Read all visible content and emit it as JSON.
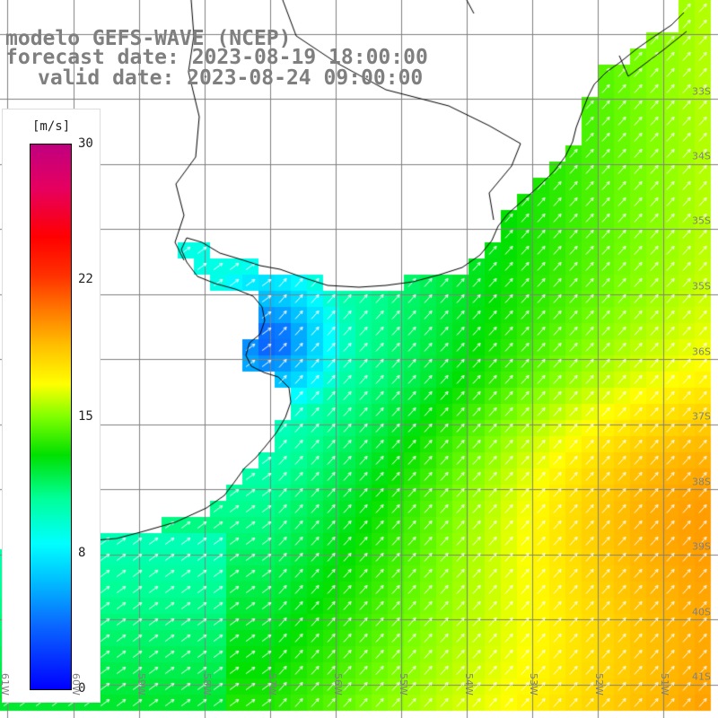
{
  "header": {
    "line1": "modelo GEFS-WAVE (NCEP)",
    "line2": "forecast date: 2023-08-19 18:00:00",
    "line3": "valid date: 2023-08-24 09:00:00"
  },
  "colorbar": {
    "unit": "[m/s]",
    "ticks": [
      "30",
      "22",
      "15",
      "8",
      "0"
    ],
    "tick_values": [
      30,
      22,
      15,
      8,
      0
    ],
    "colors": [
      "#0000ff",
      "#0a6aff",
      "#00bfff",
      "#00ffff",
      "#00ff99",
      "#00e000",
      "#7fff00",
      "#ffff00",
      "#ffc000",
      "#ff7f00",
      "#ff3000",
      "#ff0000",
      "#e60060",
      "#c0007f"
    ]
  },
  "latitude_labels": [
    "33S",
    "34S",
    "35S",
    "36S",
    "37S",
    "38S",
    "39S",
    "40S",
    "41S"
  ],
  "longitude_labels": [
    "61W",
    "60W",
    "59W",
    "58W",
    "57W",
    "56W",
    "55W",
    "54W",
    "53W",
    "52W",
    "51W"
  ],
  "map": {
    "land_color": "#ffffff",
    "grid_color": "#808080",
    "coast_color": "#000000",
    "arrow_color": "#ffffff",
    "field": "wind speed (m/s) with direction arrows"
  }
}
